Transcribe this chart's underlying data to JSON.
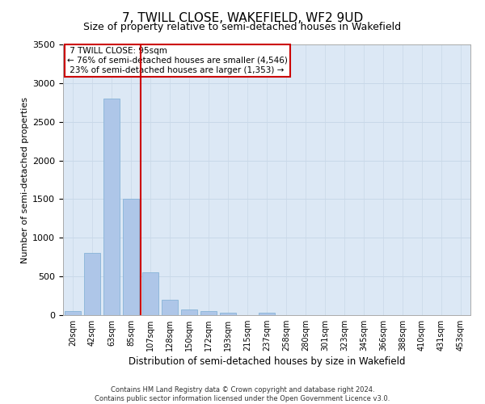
{
  "title": "7, TWILL CLOSE, WAKEFIELD, WF2 9UD",
  "subtitle": "Size of property relative to semi-detached houses in Wakefield",
  "xlabel": "Distribution of semi-detached houses by size in Wakefield",
  "ylabel": "Number of semi-detached properties",
  "footer_line1": "Contains HM Land Registry data © Crown copyright and database right 2024.",
  "footer_line2": "Contains public sector information licensed under the Open Government Licence v3.0.",
  "property_label": "7 TWILL CLOSE: 95sqm",
  "pct_smaller": 76,
  "n_smaller": 4546,
  "pct_larger": 23,
  "n_larger": 1353,
  "bin_labels": [
    "20sqm",
    "42sqm",
    "63sqm",
    "85sqm",
    "107sqm",
    "128sqm",
    "150sqm",
    "172sqm",
    "193sqm",
    "215sqm",
    "237sqm",
    "258sqm",
    "280sqm",
    "301sqm",
    "323sqm",
    "345sqm",
    "366sqm",
    "388sqm",
    "410sqm",
    "431sqm",
    "453sqm"
  ],
  "bin_values": [
    50,
    800,
    2800,
    1500,
    550,
    200,
    75,
    50,
    30,
    0,
    30,
    0,
    0,
    0,
    0,
    0,
    0,
    0,
    0,
    0,
    0
  ],
  "bar_color": "#aec6e8",
  "bar_edge_color": "#7badd4",
  "ylim": [
    0,
    3500
  ],
  "yticks": [
    0,
    500,
    1000,
    1500,
    2000,
    2500,
    3000,
    3500
  ],
  "grid_color": "#c8d8e8",
  "bg_color": "#dce8f5",
  "annotation_box_color": "#ffffff",
  "annotation_box_edge": "#cc0000",
  "red_line_color": "#cc0000",
  "title_fontsize": 11,
  "subtitle_fontsize": 9
}
